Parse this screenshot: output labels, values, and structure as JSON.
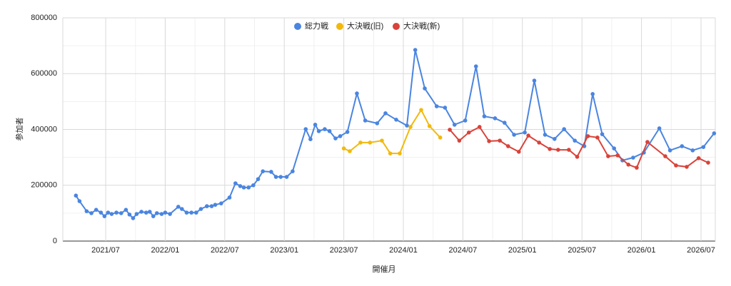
{
  "chart_data": {
    "type": "line",
    "x_label": "開催月",
    "y_label": "参加者",
    "xlim": [
      2021.14,
      2026.62
    ],
    "xticks": [
      {
        "value": 2021.5,
        "label": "2021/07"
      },
      {
        "value": 2022.0,
        "label": "2022/01"
      },
      {
        "value": 2022.5,
        "label": "2022/07"
      },
      {
        "value": 2023.0,
        "label": "2023/01"
      },
      {
        "value": 2023.5,
        "label": "2023/07"
      },
      {
        "value": 2024.0,
        "label": "2024/01"
      },
      {
        "value": 2024.5,
        "label": "2024/07"
      },
      {
        "value": 2025.0,
        "label": "2025/01"
      },
      {
        "value": 2025.5,
        "label": "2025/07"
      },
      {
        "value": 2026.0,
        "label": "2026/01"
      },
      {
        "value": 2026.5,
        "label": "2026/07"
      }
    ],
    "ylim": [
      0,
      800000
    ],
    "yticks": [
      0,
      200000,
      400000,
      600000,
      800000
    ],
    "grid": true,
    "legend": "top",
    "series": [
      {
        "name": "総力戦",
        "color": "#4a85e0",
        "x": [
          2021.25,
          2021.28,
          2021.34,
          2021.38,
          2021.42,
          2021.46,
          2021.49,
          2021.52,
          2021.55,
          2021.59,
          2021.63,
          2021.67,
          2021.7,
          2021.73,
          2021.76,
          2021.8,
          2021.84,
          2021.87,
          2021.9,
          2021.93,
          2021.97,
          2022.0,
          2022.04,
          2022.11,
          2022.14,
          2022.18,
          2022.22,
          2022.26,
          2022.3,
          2022.35,
          2022.39,
          2022.42,
          2022.47,
          2022.54,
          2022.59,
          2022.63,
          2022.66,
          2022.7,
          2022.74,
          2022.78,
          2022.82,
          2022.89,
          2022.93,
          2022.97,
          2023.02,
          2023.07,
          2023.18,
          2023.22,
          2023.26,
          2023.29,
          2023.34,
          2023.38,
          2023.43,
          2023.47,
          2023.53,
          2023.61,
          2023.68,
          2023.78,
          2023.85,
          2023.94,
          2024.03,
          2024.1,
          2024.18,
          2024.28,
          2024.35,
          2024.43,
          2024.52,
          2024.61,
          2024.68,
          2024.77,
          2024.85,
          2024.93,
          2025.02,
          2025.1,
          2025.19,
          2025.27,
          2025.35,
          2025.44,
          2025.52,
          2025.59,
          2025.67,
          2025.77,
          2025.84,
          2025.93,
          2026.02,
          2026.15,
          2026.24,
          2026.34,
          2026.43,
          2026.52,
          2026.61
        ],
        "values": [
          163000,
          143000,
          107000,
          100000,
          112000,
          102000,
          89000,
          102000,
          97000,
          102000,
          100000,
          112000,
          95000,
          82000,
          97000,
          105000,
          102000,
          105000,
          89000,
          100000,
          97000,
          102000,
          97000,
          123000,
          115000,
          102000,
          102000,
          102000,
          115000,
          125000,
          125000,
          130000,
          135000,
          156000,
          207000,
          197000,
          192000,
          192000,
          200000,
          222000,
          250000,
          248000,
          230000,
          230000,
          230000,
          250000,
          401000,
          365000,
          417000,
          394000,
          401000,
          394000,
          368000,
          376000,
          391000,
          529000,
          432000,
          422000,
          458000,
          435000,
          414000,
          685000,
          547000,
          483000,
          478000,
          417000,
          432000,
          626000,
          447000,
          440000,
          424000,
          381000,
          389000,
          575000,
          381000,
          366000,
          401000,
          360000,
          340000,
          527000,
          383000,
          332000,
          289000,
          299000,
          317000,
          404000,
          325000,
          340000,
          325000,
          337000,
          386000
        ]
      },
      {
        "name": "大決戦(旧)",
        "color": "#f2b90c",
        "x": [
          2023.5,
          2023.55,
          2023.64,
          2023.72,
          2023.82,
          2023.89,
          2023.97,
          2024.06,
          2024.15,
          2024.22,
          2024.31
        ],
        "values": [
          332000,
          322000,
          353000,
          353000,
          360000,
          314000,
          314000,
          409000,
          470000,
          412000,
          371000
        ]
      },
      {
        "name": "大決戦(新)",
        "color": "#d8433a",
        "x": [
          2024.39,
          2024.47,
          2024.55,
          2024.64,
          2024.72,
          2024.81,
          2024.88,
          2024.97,
          2025.05,
          2025.14,
          2025.23,
          2025.3,
          2025.39,
          2025.46,
          2025.55,
          2025.63,
          2025.72,
          2025.8,
          2025.89,
          2025.96,
          2026.05,
          2026.2,
          2026.29,
          2026.38,
          2026.48,
          2026.56
        ],
        "values": [
          399000,
          360000,
          389000,
          409000,
          358000,
          360000,
          340000,
          320000,
          378000,
          353000,
          330000,
          327000,
          327000,
          302000,
          376000,
          371000,
          304000,
          307000,
          274000,
          263000,
          355000,
          304000,
          271000,
          266000,
          297000,
          281000
        ]
      }
    ]
  }
}
